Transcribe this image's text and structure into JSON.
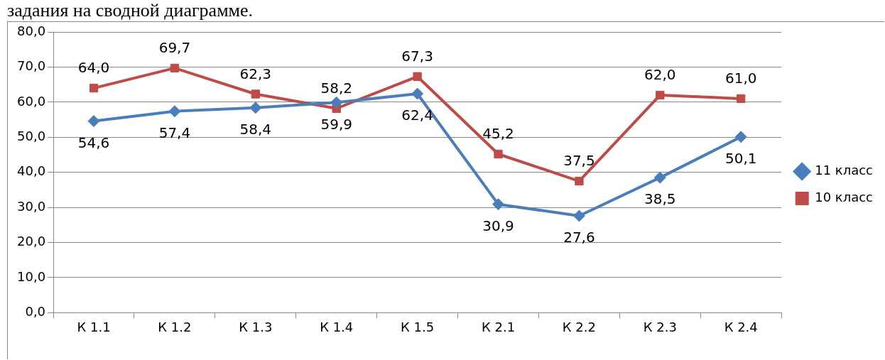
{
  "chart_data": {
    "type": "line",
    "annotations": [
      "задания на сводной диаграмме."
    ],
    "categories": [
      "К 1.1",
      "К 1.2",
      "К 1.3",
      "К 1.4",
      "К 1.5",
      "К 2.1",
      "К 2.2",
      "К 2.3",
      "К 2.4"
    ],
    "series": [
      {
        "name": "11 класс",
        "color": "#4a7ebb",
        "marker": "diamond",
        "values": [
          54.6,
          57.4,
          58.4,
          59.9,
          62.4,
          30.9,
          27.6,
          38.5,
          50.1
        ],
        "value_labels": [
          "54,6",
          "57,4",
          "58,4",
          "59,9",
          "62,4",
          "30,9",
          "27,6",
          "38,5",
          "50,1"
        ]
      },
      {
        "name": "10 класс",
        "color": "#be4b48",
        "marker": "square",
        "values": [
          64.0,
          69.7,
          62.3,
          58.2,
          67.3,
          45.2,
          37.5,
          62.0,
          61.0
        ],
        "value_labels": [
          "64,0",
          "69,7",
          "62,3",
          "58,2",
          "67,3",
          "45,2",
          "37,5",
          "62,0",
          "61,0"
        ]
      }
    ],
    "ylim": [
      0,
      80
    ],
    "yticks": [
      {
        "value": 0,
        "label": "0,0"
      },
      {
        "value": 10,
        "label": "10,0"
      },
      {
        "value": 20,
        "label": "20,0"
      },
      {
        "value": 30,
        "label": "30,0"
      },
      {
        "value": 40,
        "label": "40,0"
      },
      {
        "value": 50,
        "label": "50,0"
      },
      {
        "value": 60,
        "label": "60,0"
      },
      {
        "value": 70,
        "label": "70,0"
      },
      {
        "value": 80,
        "label": "80,0"
      }
    ],
    "grid": "y",
    "legend": "right",
    "line_style": "solid"
  }
}
